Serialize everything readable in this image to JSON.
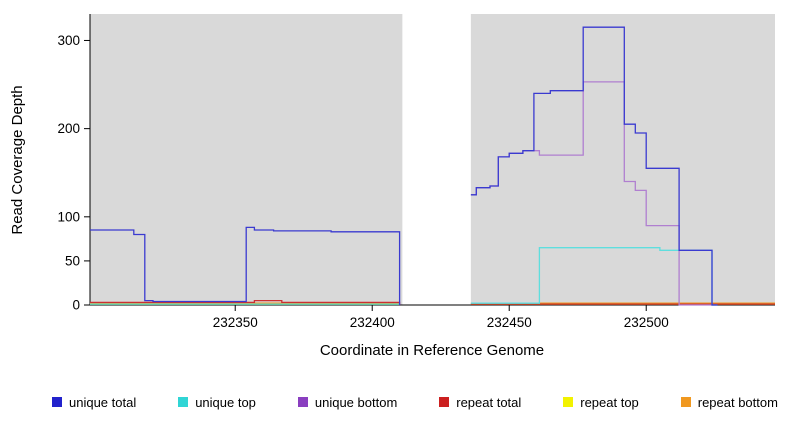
{
  "chart_data": {
    "type": "line",
    "title": "",
    "xlabel": "Coordinate in Reference Genome",
    "ylabel": "Read Coverage Depth",
    "xlim": [
      232297,
      232547
    ],
    "ylim": [
      0,
      330
    ],
    "x_ticks": [
      232350,
      232400,
      232450,
      232500
    ],
    "y_ticks": [
      0,
      50,
      100,
      200,
      300
    ],
    "plot_bg_color": "#ffffff",
    "background_regions": [
      {
        "x0": 232297,
        "x1": 232411,
        "color": "#d9d9d9"
      },
      {
        "x0": 232436,
        "x1": 232547,
        "color": "#d9d9d9"
      }
    ],
    "series": [
      {
        "name": "unique total",
        "color": "#3a3ad0",
        "points": [
          [
            232297,
            85
          ],
          [
            232313,
            85
          ],
          [
            232313,
            80
          ],
          [
            232317,
            80
          ],
          [
            232317,
            5
          ],
          [
            232320,
            5
          ],
          [
            232320,
            4
          ],
          [
            232354,
            4
          ],
          [
            232354,
            88
          ],
          [
            232357,
            88
          ],
          [
            232357,
            85
          ],
          [
            232364,
            85
          ],
          [
            232364,
            84
          ],
          [
            232385,
            84
          ],
          [
            232385,
            83
          ],
          [
            232410,
            83
          ],
          [
            232410,
            0
          ],
          null,
          [
            232436,
            125
          ],
          [
            232438,
            125
          ],
          [
            232438,
            133
          ],
          [
            232443,
            133
          ],
          [
            232443,
            135
          ],
          [
            232446,
            135
          ],
          [
            232446,
            168
          ],
          [
            232450,
            168
          ],
          [
            232450,
            172
          ],
          [
            232455,
            172
          ],
          [
            232455,
            175
          ],
          [
            232459,
            175
          ],
          [
            232459,
            240
          ],
          [
            232465,
            240
          ],
          [
            232465,
            243
          ],
          [
            232477,
            243
          ],
          [
            232477,
            315
          ],
          [
            232492,
            315
          ],
          [
            232492,
            205
          ],
          [
            232496,
            205
          ],
          [
            232496,
            195
          ],
          [
            232500,
            195
          ],
          [
            232500,
            155
          ],
          [
            232512,
            155
          ],
          [
            232512,
            62
          ],
          [
            232524,
            62
          ],
          [
            232524,
            0
          ],
          [
            232526,
            0
          ]
        ]
      },
      {
        "name": "unique top",
        "color": "#5fdede",
        "points": [
          [
            232297,
            1
          ],
          [
            232410,
            1
          ],
          null,
          [
            232436,
            2
          ],
          [
            232461,
            2
          ],
          [
            232461,
            65
          ],
          [
            232505,
            65
          ],
          [
            232505,
            62
          ],
          [
            232524,
            62
          ],
          [
            232524,
            0
          ],
          [
            232526,
            0
          ]
        ]
      },
      {
        "name": "unique bottom",
        "color": "#b07fd0",
        "points": [
          [
            232436,
            125
          ],
          [
            232438,
            125
          ],
          [
            232438,
            133
          ],
          [
            232443,
            133
          ],
          [
            232443,
            135
          ],
          [
            232446,
            135
          ],
          [
            232446,
            168
          ],
          [
            232450,
            168
          ],
          [
            232450,
            172
          ],
          [
            232455,
            172
          ],
          [
            232455,
            175
          ],
          [
            232461,
            175
          ],
          [
            232461,
            170
          ],
          [
            232477,
            170
          ],
          [
            232477,
            253
          ],
          [
            232492,
            253
          ],
          [
            232492,
            140
          ],
          [
            232496,
            140
          ],
          [
            232496,
            130
          ],
          [
            232500,
            130
          ],
          [
            232500,
            90
          ],
          [
            232512,
            90
          ],
          [
            232512,
            0
          ],
          [
            232526,
            0
          ]
        ]
      },
      {
        "name": "repeat total",
        "color": "#cc3030",
        "points": [
          [
            232297,
            3
          ],
          [
            232357,
            3
          ],
          [
            232357,
            5
          ],
          [
            232367,
            5
          ],
          [
            232367,
            3
          ],
          [
            232410,
            3
          ],
          [
            232410,
            0
          ],
          null,
          [
            232436,
            1
          ],
          [
            232547,
            1
          ]
        ]
      },
      {
        "name": "repeat top",
        "color": "#e8e800",
        "points": [
          [
            232297,
            1
          ],
          [
            232410,
            1
          ],
          null,
          [
            232436,
            1
          ],
          [
            232547,
            1
          ]
        ]
      },
      {
        "name": "repeat bottom",
        "color": "#f09820",
        "points": [
          [
            232297,
            2
          ],
          [
            232410,
            2
          ],
          null,
          [
            232436,
            2
          ],
          [
            232547,
            2
          ]
        ]
      }
    ],
    "legend": [
      {
        "label": "unique total",
        "color": "#2222cc"
      },
      {
        "label": "unique top",
        "color": "#30d5d5"
      },
      {
        "label": "unique bottom",
        "color": "#8a3fc0"
      },
      {
        "label": "repeat total",
        "color": "#cc2020"
      },
      {
        "label": "repeat top",
        "color": "#f2f200"
      },
      {
        "label": "repeat bottom",
        "color": "#f09820"
      }
    ]
  }
}
